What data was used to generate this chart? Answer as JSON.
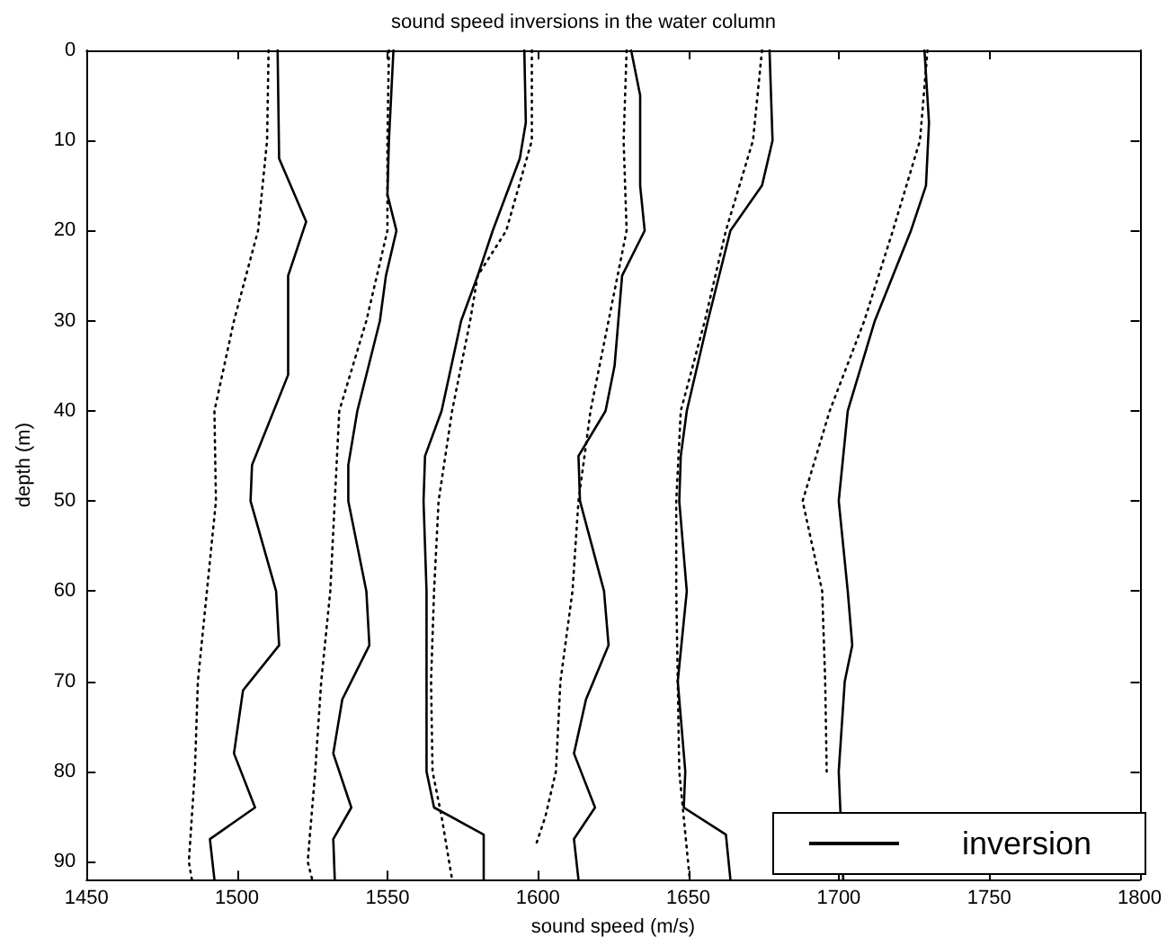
{
  "chart_data": {
    "type": "line",
    "title": "sound speed inversions in the water column",
    "xlabel": "sound speed (m/s)",
    "ylabel": "depth (m)",
    "xlim": [
      1450,
      1800
    ],
    "xticks": [
      1450,
      1500,
      1550,
      1600,
      1650,
      1700,
      1750,
      1800
    ],
    "ylim": [
      92,
      0
    ],
    "yticks": [
      0,
      10,
      20,
      30,
      40,
      50,
      60,
      70,
      80,
      90
    ],
    "grid": false,
    "legend": "bottom right",
    "marker": "none",
    "series": [
      {
        "name": "inversion",
        "color": "#000000",
        "line_style": "solid",
        "x": [
          1513.5,
          1514,
          1523,
          1517,
          1517,
          1505,
          1504.5,
          1513,
          1514,
          1502,
          1499,
          1506,
          1491,
          1492.5
        ],
        "values": [
          0,
          12,
          19,
          25,
          36,
          46,
          50,
          60,
          66,
          71,
          78,
          84,
          87.5,
          92
        ]
      },
      {
        "color": "#000000",
        "line_style": "dotted",
        "x": [
          1510.5,
          1510,
          1507,
          1499,
          1492.5,
          1493,
          1490,
          1487,
          1486,
          1484,
          1485
        ],
        "values": [
          0,
          10,
          20,
          30,
          40,
          50,
          60,
          70,
          80,
          90,
          92
        ]
      },
      {
        "color": "#000000",
        "line_style": "solid",
        "x": [
          1552,
          1550.5,
          1550,
          1553,
          1549.5,
          1547.5,
          1540,
          1537,
          1537,
          1543,
          1544,
          1535,
          1532,
          1538,
          1532,
          1532.5
        ],
        "values": [
          0,
          10,
          16,
          20,
          25,
          30,
          40,
          46,
          50,
          60,
          66,
          72,
          78,
          84,
          87.5,
          92
        ]
      },
      {
        "color": "#000000",
        "line_style": "dotted",
        "x": [
          1550.5,
          1550,
          1550,
          1543,
          1534,
          1532.5,
          1531,
          1528,
          1526,
          1523.5,
          1525
        ],
        "values": [
          0,
          10,
          20,
          30,
          40,
          50,
          60,
          70,
          80,
          90,
          92
        ]
      },
      {
        "color": "#000000",
        "line_style": "solid",
        "x": [
          1595.5,
          1596,
          1594,
          1585,
          1580,
          1574.5,
          1568,
          1562.5,
          1562,
          1563,
          1563,
          1563,
          1565.5,
          1582,
          1582
        ],
        "values": [
          0,
          8,
          12,
          20,
          25,
          30,
          40,
          45,
          50,
          60,
          70,
          80,
          84,
          87,
          92
        ]
      },
      {
        "color": "#000000",
        "line_style": "dotted",
        "x": [
          1598,
          1598,
          1589.5,
          1580,
          1577.5,
          1571.5,
          1567,
          1565.5,
          1564.5,
          1565,
          1568,
          1571.5
        ],
        "values": [
          0,
          10,
          20,
          25,
          30,
          40,
          50,
          60,
          70,
          80,
          85,
          92
        ]
      },
      {
        "color": "#000000",
        "line_style": "solid",
        "x": [
          1631,
          1634,
          1634,
          1635.5,
          1628,
          1625.5,
          1622.5,
          1613.5,
          1614,
          1622,
          1623.5,
          1616,
          1612,
          1619,
          1612,
          1613.5
        ],
        "values": [
          0,
          5,
          15,
          20,
          25,
          35,
          40,
          45,
          50,
          60,
          66,
          72,
          78,
          84,
          87.5,
          92
        ]
      },
      {
        "color": "#000000",
        "line_style": "dotted",
        "x": [
          1629.5,
          1628.5,
          1629.5,
          1623.5,
          1617.5,
          1613.5,
          1611.5,
          1607.5,
          1606,
          1602.5,
          1599.5
        ],
        "values": [
          0,
          10,
          20,
          30,
          40,
          50,
          60,
          70,
          80,
          85,
          88
        ]
      },
      {
        "color": "#000000",
        "line_style": "solid",
        "x": [
          1677,
          1678,
          1674.5,
          1664,
          1656.5,
          1649.5,
          1647.5,
          1647,
          1649.5,
          1646.5,
          1649,
          1648.5,
          1662.5,
          1664
        ],
        "values": [
          0,
          10,
          15,
          20,
          30,
          40,
          45,
          50,
          60,
          70,
          80,
          84,
          87,
          92
        ]
      },
      {
        "color": "#000000",
        "line_style": "dotted",
        "x": [
          1674.5,
          1671.5,
          1662.5,
          1655.5,
          1647.5,
          1646,
          1646,
          1646.5,
          1647,
          1650.5
        ],
        "values": [
          0,
          10,
          20,
          30,
          40,
          50,
          60,
          70,
          80,
          92
        ]
      },
      {
        "color": "#000000",
        "line_style": "solid",
        "x": [
          1728.5,
          1730,
          1729,
          1724,
          1712,
          1703,
          1701.5,
          1700,
          1703,
          1704.5,
          1702,
          1700,
          1701.5
        ],
        "values": [
          0,
          8,
          15,
          20,
          30,
          40,
          45,
          50,
          60,
          66,
          70,
          80,
          92
        ]
      },
      {
        "color": "#000000",
        "line_style": "dotted",
        "x": [
          1729.5,
          1727,
          1718,
          1708.5,
          1697,
          1688,
          1694.5,
          1695.5,
          1696
        ],
        "values": [
          0,
          10,
          20,
          30,
          40,
          50,
          60,
          70,
          80
        ]
      }
    ]
  }
}
